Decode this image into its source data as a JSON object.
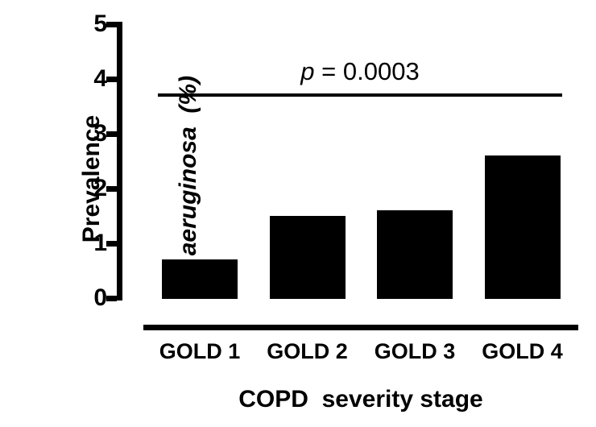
{
  "figure": {
    "background": "#ffffff",
    "ink": "#000000"
  },
  "chart_data": {
    "type": "bar",
    "categories": [
      "GOLD 1",
      "GOLD 2",
      "GOLD 3",
      "GOLD 4"
    ],
    "values": [
      0.7,
      1.5,
      1.6,
      2.6
    ],
    "bar_color": "#000000",
    "xlabel": "COPD  severity stage",
    "ylabel_line1": "Prevalence",
    "ylabel_line2": "P. aeruginosa  (%)",
    "ylim": [
      0,
      5
    ],
    "yticks": [
      "0",
      "1",
      "2",
      "3",
      "4",
      "5"
    ],
    "grid": false,
    "legend": "none",
    "annotation": {
      "symbol": "p",
      "rest": " = 0.0003",
      "full_text": "p = 0.0003",
      "line_y_value": 3.7
    }
  }
}
